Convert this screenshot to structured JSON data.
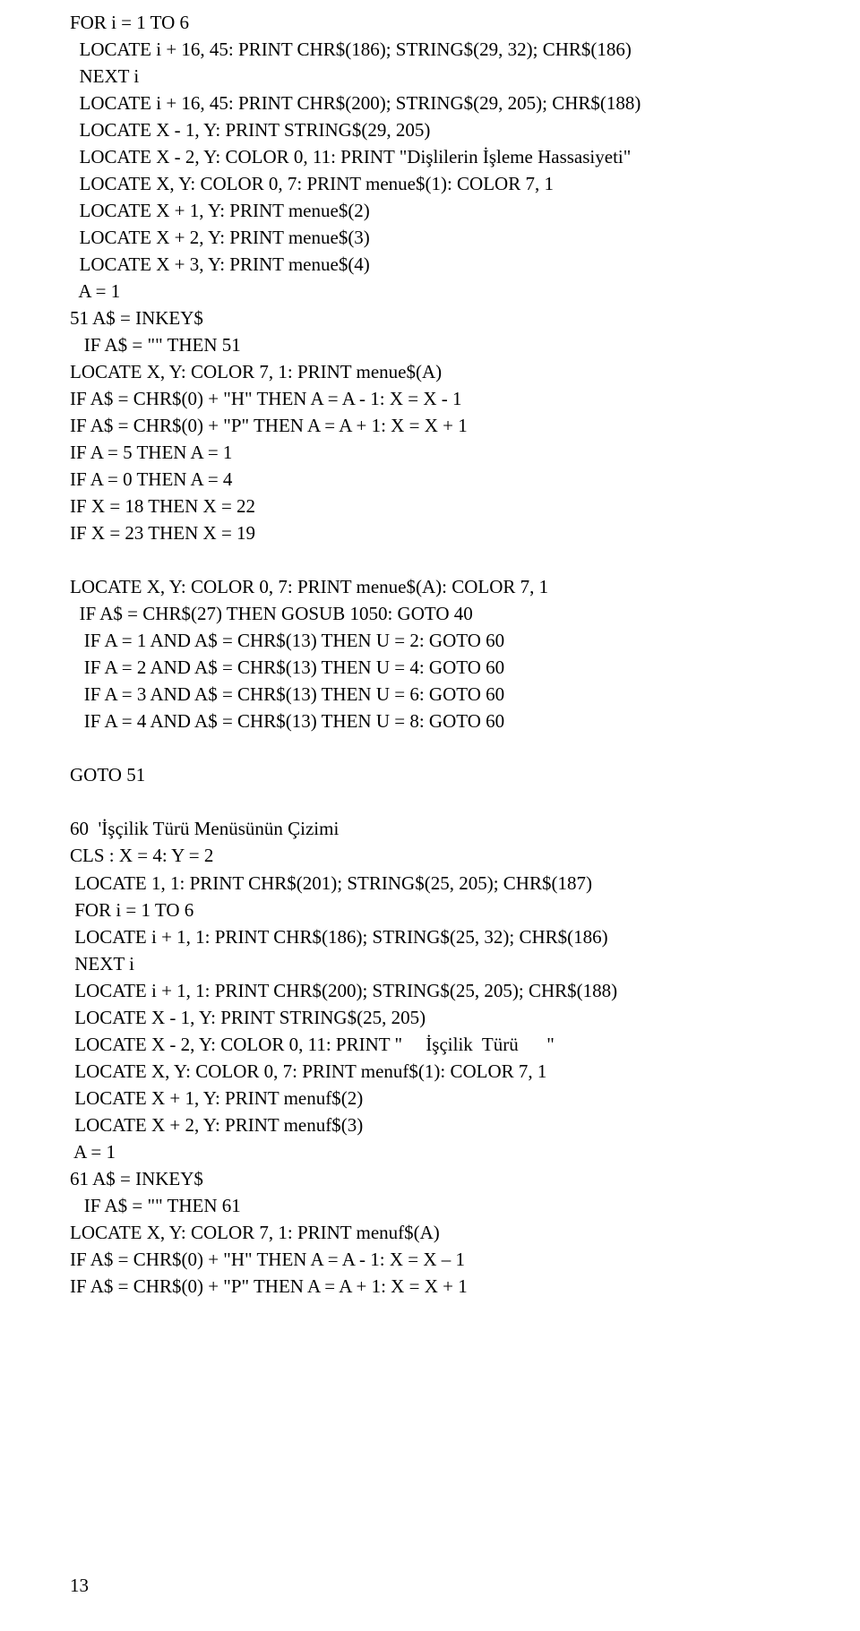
{
  "page_number": "13",
  "code_lines": [
    "FOR i = 1 TO 6",
    "  LOCATE i + 16, 45: PRINT CHR$(186); STRING$(29, 32); CHR$(186)",
    "  NEXT i",
    "  LOCATE i + 16, 45: PRINT CHR$(200); STRING$(29, 205); CHR$(188)",
    "  LOCATE X - 1, Y: PRINT STRING$(29, 205)",
    "  LOCATE X - 2, Y: COLOR 0, 11: PRINT \"Dişlilerin İşleme Hassasiyeti\"",
    "  LOCATE X, Y: COLOR 0, 7: PRINT menue$(1): COLOR 7, 1",
    "  LOCATE X + 1, Y: PRINT menue$(2)",
    "  LOCATE X + 2, Y: PRINT menue$(3)",
    "  LOCATE X + 3, Y: PRINT menue$(4)",
    "  A = 1",
    "51 A$ = INKEY$",
    "   IF A$ = \"\" THEN 51",
    "LOCATE X, Y: COLOR 7, 1: PRINT menue$(A)",
    "IF A$ = CHR$(0) + \"H\" THEN A = A - 1: X = X - 1",
    "IF A$ = CHR$(0) + \"P\" THEN A = A + 1: X = X + 1",
    "IF A = 5 THEN A = 1",
    "IF A = 0 THEN A = 4",
    "IF X = 18 THEN X = 22",
    "IF X = 23 THEN X = 19",
    "",
    "LOCATE X, Y: COLOR 0, 7: PRINT menue$(A): COLOR 7, 1",
    "  IF A$ = CHR$(27) THEN GOSUB 1050: GOTO 40",
    "   IF A = 1 AND A$ = CHR$(13) THEN U = 2: GOTO 60",
    "   IF A = 2 AND A$ = CHR$(13) THEN U = 4: GOTO 60",
    "   IF A = 3 AND A$ = CHR$(13) THEN U = 6: GOTO 60",
    "   IF A = 4 AND A$ = CHR$(13) THEN U = 8: GOTO 60",
    "",
    "GOTO 51",
    "",
    "60  'İşçilik Türü Menüsünün Çizimi",
    "CLS : X = 4: Y = 2",
    " LOCATE 1, 1: PRINT CHR$(201); STRING$(25, 205); CHR$(187)",
    " FOR i = 1 TO 6",
    " LOCATE i + 1, 1: PRINT CHR$(186); STRING$(25, 32); CHR$(186)",
    " NEXT i",
    " LOCATE i + 1, 1: PRINT CHR$(200); STRING$(25, 205); CHR$(188)",
    " LOCATE X - 1, Y: PRINT STRING$(25, 205)",
    " LOCATE X - 2, Y: COLOR 0, 11: PRINT \"     İşçilik  Türü      \"",
    " LOCATE X, Y: COLOR 0, 7: PRINT menuf$(1): COLOR 7, 1",
    " LOCATE X + 1, Y: PRINT menuf$(2)",
    " LOCATE X + 2, Y: PRINT menuf$(3)",
    " A = 1",
    "61 A$ = INKEY$",
    "   IF A$ = \"\" THEN 61",
    "LOCATE X, Y: COLOR 7, 1: PRINT menuf$(A)",
    "IF A$ = CHR$(0) + \"H\" THEN A = A - 1: X = X – 1",
    "IF A$ = CHR$(0) + \"P\" THEN A = A + 1: X = X + 1"
  ]
}
